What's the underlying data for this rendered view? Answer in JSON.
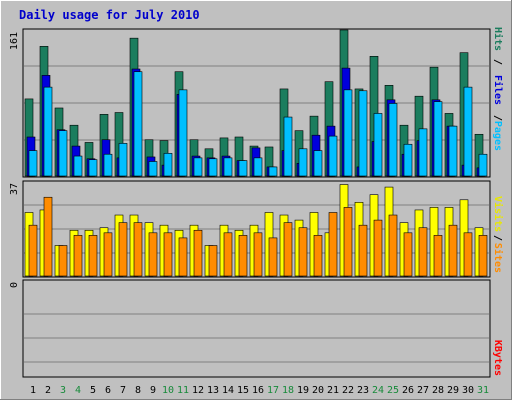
{
  "colors": {
    "background": "#C0C0C0",
    "title": "#0000CC",
    "hits": "#1B7D5E",
    "files": "#0000DD",
    "pages": "#00BFFF",
    "visits": "#FFFF00",
    "sites": "#FF8C00",
    "kbytes": "#FF0000",
    "weekend_label": "#178A3A"
  },
  "chart_data": {
    "title": "Daily usage for July 2010",
    "categories": [
      "1",
      "2",
      "3",
      "4",
      "5",
      "6",
      "7",
      "8",
      "9",
      "10",
      "11",
      "12",
      "13",
      "14",
      "15",
      "16",
      "17",
      "18",
      "19",
      "20",
      "21",
      "22",
      "23",
      "24",
      "25",
      "26",
      "27",
      "28",
      "29",
      "30",
      "31"
    ],
    "weekend_days": [
      "3",
      "4",
      "10",
      "11",
      "17",
      "18",
      "24",
      "25",
      "31"
    ],
    "panels": [
      {
        "type": "bar",
        "ymax_label": "161",
        "ylim": [
          0,
          161
        ],
        "legend": [
          "Pages",
          "Files",
          "Hits"
        ],
        "series": [
          {
            "name": "Hits",
            "values": [
              85,
              143,
              75,
              56,
              37,
              68,
              70,
              152,
              40,
              39,
              115,
              40,
              30,
              42,
              43,
              33,
              32,
              96,
              50,
              66,
              104,
              161,
              96,
              132,
              100,
              56,
              88,
              120,
              69,
              136,
              46
            ]
          },
          {
            "name": "Files",
            "values": [
              43,
              111,
              51,
              33,
              19,
              40,
              20,
              118,
              21,
              12,
              90,
              22,
              20,
              22,
              17,
              31,
              10,
              28,
              14,
              45,
              55,
              119,
              10,
              38,
              84,
              24,
              39,
              84,
              55,
              12,
              9
            ]
          },
          {
            "name": "Pages",
            "values": [
              28,
              98,
              50,
              22,
              18,
              24,
              36,
              115,
              16,
              25,
              95,
              20,
              19,
              20,
              17,
              20,
              10,
              65,
              30,
              28,
              44,
              95,
              94,
              69,
              80,
              35,
              52,
              82,
              55,
              98,
              24
            ]
          }
        ]
      },
      {
        "type": "bar",
        "ymax_label": "37",
        "ylim": [
          0,
          37
        ],
        "legend": [
          "Sites",
          "Visits"
        ],
        "series": [
          {
            "name": "Visits",
            "values": [
              25,
              26,
              12,
              18,
              18,
              19,
              24,
              24,
              21,
              20,
              18,
              20,
              12,
              20,
              18,
              20,
              25,
              24,
              22,
              25,
              17,
              36,
              29,
              32,
              35,
              21,
              26,
              27,
              27,
              30,
              19
            ]
          },
          {
            "name": "Sites",
            "values": [
              20,
              31,
              12,
              16,
              16,
              17,
              21,
              21,
              17,
              17,
              15,
              18,
              12,
              17,
              16,
              17,
              15,
              21,
              19,
              16,
              25,
              27,
              20,
              22,
              24,
              17,
              19,
              16,
              20,
              17,
              16
            ]
          }
        ]
      },
      {
        "type": "bar",
        "ymax_label": "0",
        "legend": [
          "KBytes"
        ],
        "series": [
          {
            "name": "KBytes",
            "values": [
              0,
              0,
              0,
              0,
              0,
              0,
              0,
              0,
              0,
              0,
              0,
              0,
              0,
              0,
              0,
              0,
              0,
              0,
              0,
              0,
              0,
              0,
              0,
              0,
              0,
              0,
              0,
              0,
              0,
              0,
              0
            ]
          }
        ]
      }
    ]
  }
}
